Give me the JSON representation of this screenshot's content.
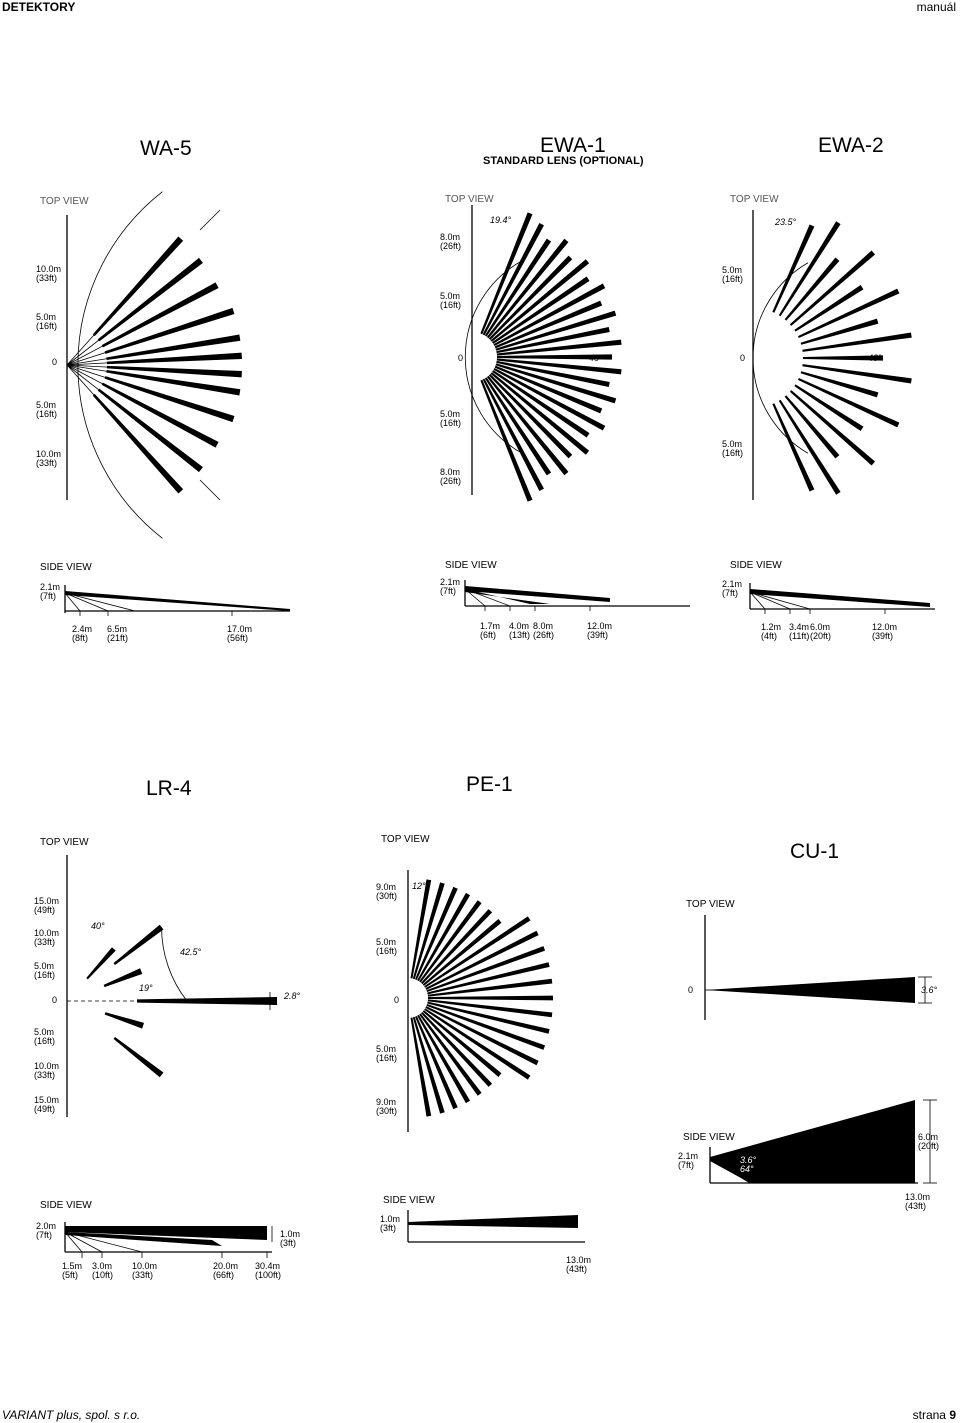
{
  "header": {
    "left": "DETEKTORY",
    "right": "manuál"
  },
  "footer": {
    "company": "VARIANT plus, spol. s r.o.",
    "page_label": "strana",
    "page_number": "9"
  },
  "diagrams": {
    "wa5": {
      "title": "WA-5",
      "top_view": "TOP VIEW",
      "top_labels": [
        "10.0m\n(33ft)",
        "5.0m\n(16ft)",
        "0",
        "5.0m\n(16ft)",
        "10.0m\n(33ft)"
      ],
      "side_view": "SIDE VIEW",
      "side_height": "2.1m\n(7ft)",
      "side_distances": [
        "2.4m\n(8ft)",
        "6.5m\n(21ft)",
        "17.0m\n(56ft)"
      ]
    },
    "ewa1": {
      "title": "EWA-1",
      "subtitle": "STANDARD LENS (OPTIONAL)",
      "top_view": "TOP VIEW",
      "angle": "19.4°",
      "angle_inner": "40°",
      "top_labels": [
        "8.0m\n(26ft)",
        "5.0m\n(16ft)",
        "0",
        "5.0m\n(16ft)",
        "8.0m\n(26ft)"
      ],
      "side_view": "SIDE VIEW",
      "side_height": "2.1m\n(7ft)",
      "side_distances": [
        "1.7m\n(6ft)",
        "4.0m\n(13ft)",
        "8.0m\n(26ft)",
        "12.0m\n(39ft)"
      ]
    },
    "ewa2": {
      "title": "EWA-2",
      "top_view": "TOP VIEW",
      "angle": "23.5°",
      "angle_inner": "40°",
      "top_labels": [
        "5.0m\n(16ft)",
        "0",
        "5.0m\n(16ft)"
      ],
      "side_view": "SIDE VIEW",
      "side_height": "2.1m\n(7ft)",
      "side_distances": [
        "1.2m\n(4ft)",
        "3.4m\n(11ft)",
        "6.0m\n(20ft)",
        "12.0m\n(39ft)"
      ]
    },
    "lr4": {
      "title": "LR-4",
      "top_view": "TOP VIEW",
      "angles": [
        "40°",
        "42.5°",
        "19°",
        "2.8°"
      ],
      "top_labels": [
        "15.0m\n(49ft)",
        "10.0m\n(33ft)",
        "5.0m\n(16ft)",
        "0",
        "5.0m\n(16ft)",
        "10.0m\n(33ft)",
        "15.0m\n(49ft)"
      ],
      "side_view": "SIDE VIEW",
      "side_height": "2.0m\n(7ft)",
      "side_right": "1.0m\n(3ft)",
      "side_distances": [
        "1.5m\n(5ft)",
        "3.0m\n(10ft)",
        "10.0m\n(33ft)",
        "20.0m\n(66ft)",
        "30.4m\n(100ft)"
      ]
    },
    "pe1": {
      "title": "PE-1",
      "top_view": "TOP VIEW",
      "angle": "12°",
      "top_labels": [
        "9.0m\n(30ft)",
        "5.0m\n(16ft)",
        "0",
        "5.0m\n(16ft)",
        "9.0m\n(30ft)"
      ],
      "side_view": "SIDE VIEW",
      "side_height": "1.0m\n(3ft)",
      "side_distance": "13.0m\n(43ft)"
    },
    "cu1": {
      "title": "CU-1",
      "top_view": "TOP VIEW",
      "top_zero": "0",
      "angle": "3.6°",
      "side_view": "SIDE VIEW",
      "side_height": "2.1m\n(7ft)",
      "side_angles": "3.6°\n64°",
      "side_right": "6.0m\n(20ft)",
      "side_distance": "13.0m\n(43ft)"
    }
  }
}
